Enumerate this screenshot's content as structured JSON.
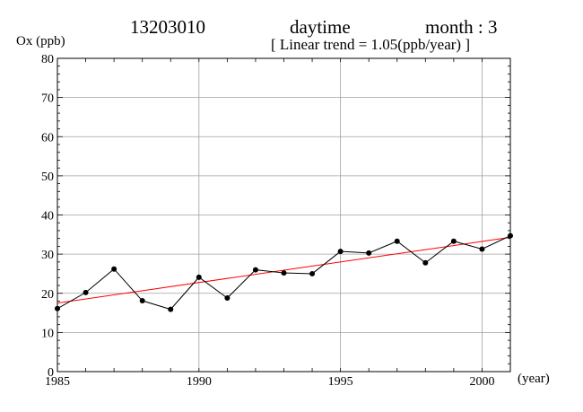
{
  "header": {
    "station": "13203010",
    "period": "daytime",
    "month_label": "month : 3",
    "trend_label": "[ Linear trend = 1.05(ppb/year) ]"
  },
  "colors": {
    "series": "#000000",
    "trend": "#ff0000",
    "grid": "#a0a0a0"
  },
  "chart_data": {
    "type": "line",
    "title": "",
    "ylabel": "Ox (ppb)",
    "xlabel": "(year)",
    "xlim": [
      1985,
      2001
    ],
    "ylim": [
      0,
      80
    ],
    "x_ticks": [
      1985,
      1990,
      1995,
      2000
    ],
    "y_ticks": [
      0,
      10,
      20,
      30,
      40,
      50,
      60,
      70,
      80
    ],
    "grid": true,
    "x": [
      1985,
      1986,
      1987,
      1988,
      1989,
      1990,
      1991,
      1992,
      1993,
      1994,
      1995,
      1996,
      1997,
      1998,
      1999,
      2000,
      2001
    ],
    "series": [
      {
        "values": [
          16.1,
          20.2,
          26.2,
          18.1,
          15.9,
          24.1,
          18.8,
          26.0,
          25.2,
          25.0,
          30.7,
          30.3,
          33.3,
          27.8,
          33.3,
          31.3,
          34.7
        ]
      }
    ],
    "trend_line": {
      "x": [
        1985,
        2001
      ],
      "y": [
        17.5,
        34.3
      ],
      "slope_ppb_per_year": 1.05
    }
  }
}
